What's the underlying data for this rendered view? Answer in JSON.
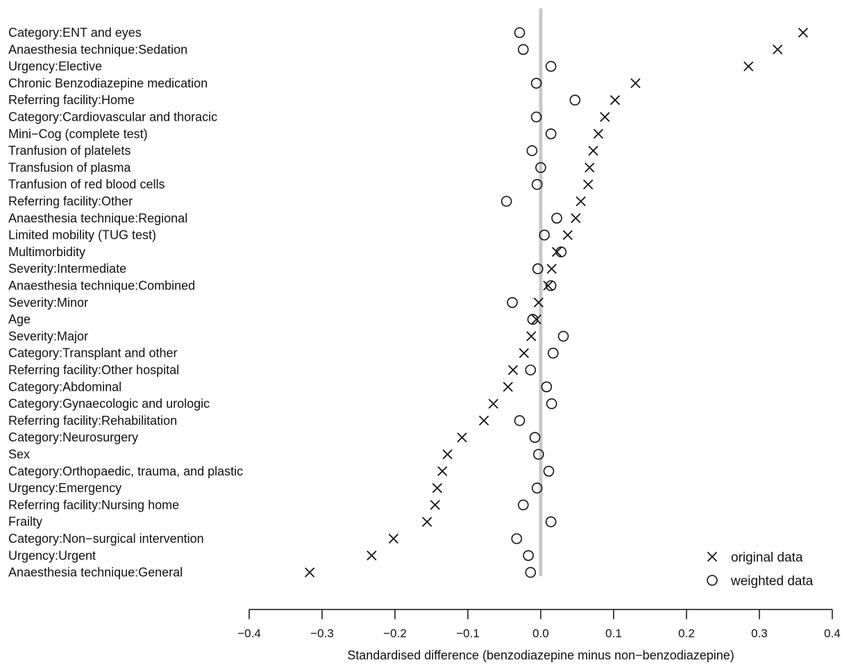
{
  "chart_data": {
    "type": "scatter",
    "title": "",
    "xlabel": "Standardised difference (benzodiazepine minus non−benzodiazepine)",
    "ylabel": "",
    "xlim": [
      -0.4,
      0.4
    ],
    "xticks": [
      -0.4,
      -0.3,
      -0.2,
      -0.1,
      0.0,
      0.1,
      0.2,
      0.3,
      0.4
    ],
    "xtick_labels": [
      "−0.4",
      "−0.3",
      "−0.2",
      "−0.1",
      "0.0",
      "0.1",
      "0.2",
      "0.3",
      "0.4"
    ],
    "reference_line": 0.0,
    "grid": false,
    "legend_position": "bottom-right",
    "categories": [
      "Category:ENT and eyes",
      "Anaesthesia technique:Sedation",
      "Urgency:Elective",
      "Chronic Benzodiazepine medication",
      "Referring facility:Home",
      "Category:Cardiovascular and thoracic",
      "Mini−Cog (complete test)",
      "Tranfusion of platelets",
      "Transfusion of plasma",
      "Tranfusion of red blood cells",
      "Referring facility:Other",
      "Anaesthesia technique:Regional",
      "Limited mobility (TUG test)",
      "Multimorbidity",
      "Severity:Intermediate",
      "Anaesthesia technique:Combined",
      "Severity:Minor",
      "Age",
      "Severity:Major",
      "Category:Transplant and other",
      "Referring facility:Other hospital",
      "Category:Abdominal",
      "Category:Gynaecologic and urologic",
      "Referring facility:Rehabilitation",
      "Category:Neurosurgery",
      "Sex",
      "Category:Orthopaedic, trauma, and plastic",
      "Urgency:Emergency",
      "Referring facility:Nursing home",
      "Frailty",
      "Category:Non−surgical intervention",
      "Urgency:Urgent",
      "Anaesthesia technique:General"
    ],
    "series": [
      {
        "name": "original data",
        "marker": "x",
        "values": [
          0.36,
          0.325,
          0.285,
          0.13,
          0.102,
          0.088,
          0.079,
          0.072,
          0.067,
          0.065,
          0.055,
          0.048,
          0.037,
          0.022,
          0.015,
          0.01,
          -0.003,
          -0.006,
          -0.013,
          -0.023,
          -0.038,
          -0.045,
          -0.065,
          -0.078,
          -0.108,
          -0.128,
          -0.135,
          -0.142,
          -0.145,
          -0.156,
          -0.202,
          -0.232,
          -0.317
        ]
      },
      {
        "name": "weighted data",
        "marker": "o",
        "values": [
          -0.029,
          -0.024,
          0.014,
          -0.006,
          0.047,
          -0.006,
          0.014,
          -0.012,
          0.0,
          -0.005,
          -0.047,
          0.022,
          0.005,
          0.028,
          -0.004,
          0.014,
          -0.039,
          -0.011,
          0.031,
          0.017,
          -0.014,
          0.008,
          0.015,
          -0.029,
          -0.008,
          -0.003,
          0.011,
          -0.005,
          -0.024,
          0.014,
          -0.033,
          -0.017,
          -0.014
        ]
      }
    ]
  }
}
